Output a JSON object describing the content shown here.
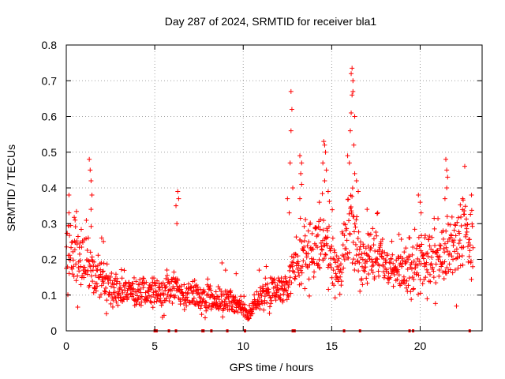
{
  "chart_data": {
    "type": "scatter",
    "title": "Day 287 of 2024, SRMTID for receiver bla1",
    "xlabel": "GPS time / hours",
    "ylabel": "SRMTID / TECUs",
    "xlim": [
      0,
      23.5
    ],
    "ylim": [
      0,
      0.8
    ],
    "xticks": [
      0,
      5,
      10,
      15,
      20
    ],
    "xtick_labels": [
      "0",
      "5",
      "10",
      "15",
      "20"
    ],
    "yticks": [
      0,
      0.1,
      0.2,
      0.3,
      0.4,
      0.5,
      0.6,
      0.7,
      0.8
    ],
    "ytick_labels": [
      "0",
      "0.1",
      "0.2",
      "0.3",
      "0.4",
      "0.5",
      "0.6",
      "0.7",
      "0.8"
    ],
    "grid": true,
    "marker": "+",
    "series_color": "#ff0000",
    "trend": [
      [
        0.0,
        0.24
      ],
      [
        0.3,
        0.22
      ],
      [
        0.6,
        0.21
      ],
      [
        1.0,
        0.2
      ],
      [
        1.5,
        0.16
      ],
      [
        2.0,
        0.14
      ],
      [
        2.5,
        0.12
      ],
      [
        3.0,
        0.115
      ],
      [
        3.5,
        0.11
      ],
      [
        4.0,
        0.105
      ],
      [
        4.5,
        0.11
      ],
      [
        5.0,
        0.11
      ],
      [
        5.5,
        0.1
      ],
      [
        6.0,
        0.12
      ],
      [
        6.5,
        0.1
      ],
      [
        7.0,
        0.1
      ],
      [
        7.5,
        0.1
      ],
      [
        8.0,
        0.09
      ],
      [
        8.5,
        0.09
      ],
      [
        9.0,
        0.085
      ],
      [
        9.5,
        0.08
      ],
      [
        10.0,
        0.06
      ],
      [
        10.3,
        0.04
      ],
      [
        10.6,
        0.07
      ],
      [
        11.0,
        0.1
      ],
      [
        11.5,
        0.12
      ],
      [
        12.0,
        0.11
      ],
      [
        12.5,
        0.13
      ],
      [
        13.0,
        0.2
      ],
      [
        13.5,
        0.23
      ],
      [
        14.0,
        0.24
      ],
      [
        14.5,
        0.25
      ],
      [
        15.0,
        0.2
      ],
      [
        15.5,
        0.17
      ],
      [
        16.0,
        0.3
      ],
      [
        16.5,
        0.22
      ],
      [
        17.0,
        0.21
      ],
      [
        17.5,
        0.21
      ],
      [
        18.0,
        0.19
      ],
      [
        18.5,
        0.18
      ],
      [
        19.0,
        0.18
      ],
      [
        19.5,
        0.17
      ],
      [
        20.0,
        0.2
      ],
      [
        20.5,
        0.21
      ],
      [
        21.0,
        0.19
      ],
      [
        21.5,
        0.22
      ],
      [
        22.0,
        0.25
      ],
      [
        22.5,
        0.27
      ],
      [
        23.0,
        0.28
      ]
    ],
    "spikes": [
      [
        0.15,
        0.38
      ],
      [
        0.15,
        0.33
      ],
      [
        0.5,
        0.31
      ],
      [
        1.3,
        0.48
      ],
      [
        1.35,
        0.45
      ],
      [
        1.4,
        0.42
      ],
      [
        1.45,
        0.38
      ],
      [
        1.4,
        0.34
      ],
      [
        2.0,
        0.26
      ],
      [
        2.1,
        0.25
      ],
      [
        6.3,
        0.39
      ],
      [
        6.35,
        0.37
      ],
      [
        6.2,
        0.35
      ],
      [
        6.25,
        0.3
      ],
      [
        8.8,
        0.19
      ],
      [
        9.0,
        0.17
      ],
      [
        9.6,
        0.16
      ],
      [
        10.9,
        0.17
      ],
      [
        11.3,
        0.18
      ],
      [
        12.7,
        0.67
      ],
      [
        12.75,
        0.62
      ],
      [
        12.7,
        0.56
      ],
      [
        12.65,
        0.47
      ],
      [
        12.8,
        0.4
      ],
      [
        12.5,
        0.37
      ],
      [
        12.6,
        0.33
      ],
      [
        13.2,
        0.49
      ],
      [
        13.3,
        0.47
      ],
      [
        13.25,
        0.44
      ],
      [
        13.3,
        0.41
      ],
      [
        13.2,
        0.37
      ],
      [
        14.55,
        0.53
      ],
      [
        14.6,
        0.52
      ],
      [
        14.65,
        0.5
      ],
      [
        14.5,
        0.47
      ],
      [
        14.7,
        0.45
      ],
      [
        14.6,
        0.42
      ],
      [
        14.8,
        0.39
      ],
      [
        14.3,
        0.36
      ],
      [
        15.9,
        0.49
      ],
      [
        16.0,
        0.47
      ],
      [
        16.05,
        0.56
      ],
      [
        16.1,
        0.61
      ],
      [
        16.15,
        0.66
      ],
      [
        16.2,
        0.7
      ],
      [
        16.1,
        0.72
      ],
      [
        16.15,
        0.735
      ],
      [
        16.2,
        0.67
      ],
      [
        16.3,
        0.6
      ],
      [
        16.25,
        0.52
      ],
      [
        16.3,
        0.44
      ],
      [
        16.4,
        0.42
      ],
      [
        16.5,
        0.39
      ],
      [
        17.0,
        0.34
      ],
      [
        17.6,
        0.33
      ],
      [
        18.8,
        0.27
      ],
      [
        19.9,
        0.38
      ],
      [
        20.0,
        0.36
      ],
      [
        20.05,
        0.33
      ],
      [
        21.45,
        0.48
      ],
      [
        21.5,
        0.45
      ],
      [
        21.55,
        0.43
      ],
      [
        21.5,
        0.4
      ],
      [
        21.4,
        0.37
      ],
      [
        22.4,
        0.37
      ],
      [
        22.9,
        0.38
      ]
    ],
    "gap_markers": [
      5.0,
      5.1,
      5.8,
      6.2,
      7.7,
      7.75,
      8.2,
      9.1,
      10.1,
      12.8,
      12.9,
      15.7,
      16.6,
      19.4,
      19.6,
      22.8
    ]
  }
}
